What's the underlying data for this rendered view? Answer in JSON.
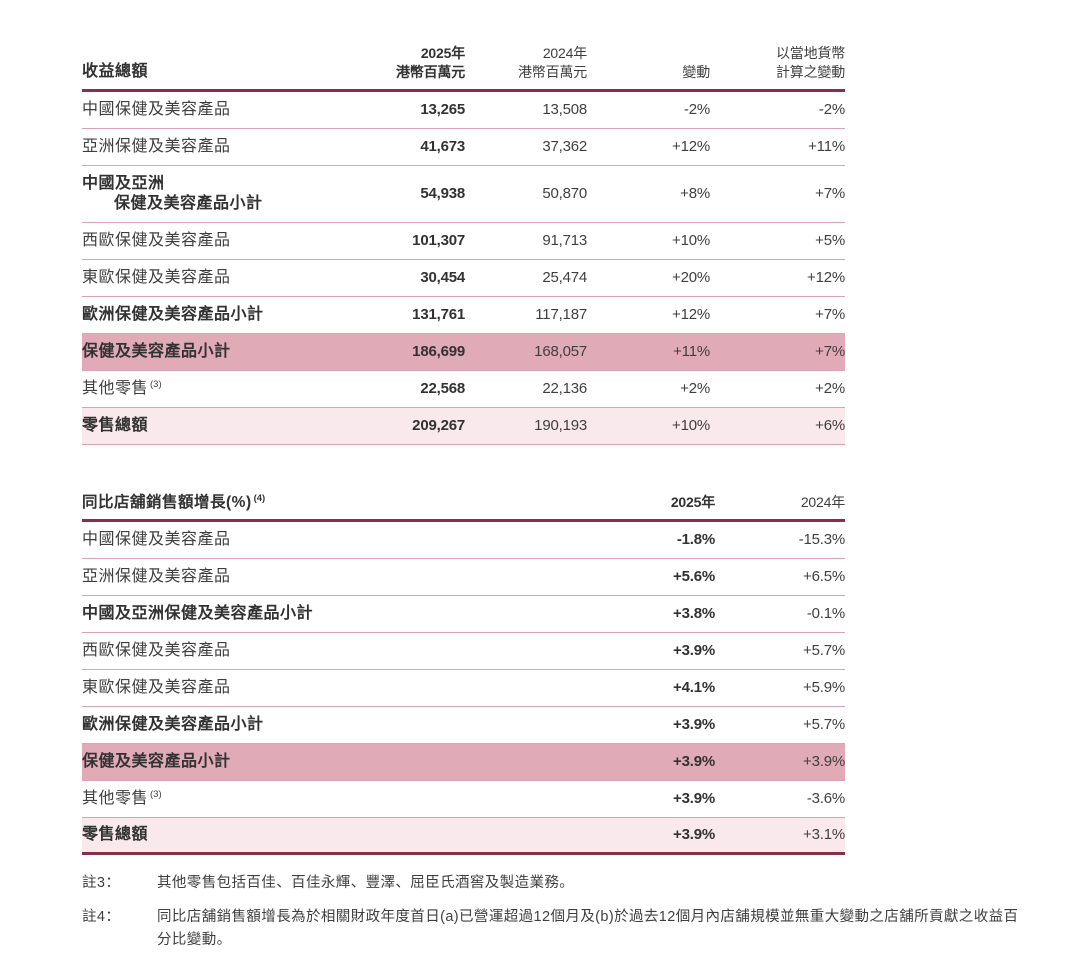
{
  "colors": {
    "header_rule": "#8a2d4a",
    "row_rule": "#d9a2b5",
    "subtotal_row_bg": "#e0aab7",
    "total_row_bg": "#f9e8ec",
    "text": "#3f3f3f"
  },
  "table1": {
    "header": {
      "label": "收益總額",
      "y2025_l1": "2025年",
      "y2025_l2": "港幣百萬元",
      "y2024_l1": "2024年",
      "y2024_l2": "港幣百萬元",
      "change": "變動",
      "local_l1": "以當地貨幣",
      "local_l2": "計算之變動"
    },
    "rows": [
      {
        "label": "中國保健及美容產品",
        "v2025": "13,265",
        "v2024": "13,508",
        "change": "-2%",
        "local": "-2%"
      },
      {
        "label": "亞洲保健及美容產品",
        "v2025": "41,673",
        "v2024": "37,362",
        "change": "+12%",
        "local": "+11%"
      },
      {
        "label": "中國及亞洲",
        "label2": "保健及美容產品小計",
        "v2025": "54,938",
        "v2024": "50,870",
        "change": "+8%",
        "local": "+7%"
      },
      {
        "label": "西歐保健及美容產品",
        "v2025": "101,307",
        "v2024": "91,713",
        "change": "+10%",
        "local": "+5%"
      },
      {
        "label": "東歐保健及美容產品",
        "v2025": "30,454",
        "v2024": "25,474",
        "change": "+20%",
        "local": "+12%"
      },
      {
        "label": "歐洲保健及美容產品小計",
        "v2025": "131,761",
        "v2024": "117,187",
        "change": "+12%",
        "local": "+7%"
      },
      {
        "label": "保健及美容產品小計",
        "v2025": "186,699",
        "v2024": "168,057",
        "change": "+11%",
        "local": "+7%"
      },
      {
        "label": "其他零售",
        "sup": "(3)",
        "v2025": "22,568",
        "v2024": "22,136",
        "change": "+2%",
        "local": "+2%"
      },
      {
        "label": "零售總額",
        "v2025": "209,267",
        "v2024": "190,193",
        "change": "+10%",
        "local": "+6%"
      }
    ]
  },
  "table2": {
    "header": {
      "label": "同比店舖銷售額增長(%)",
      "sup": "(4)",
      "y2025": "2025年",
      "y2024": "2024年"
    },
    "rows": [
      {
        "label": "中國保健及美容產品",
        "v2025": "-1.8%",
        "v2024": "-15.3%"
      },
      {
        "label": "亞洲保健及美容產品",
        "v2025": "+5.6%",
        "v2024": "+6.5%"
      },
      {
        "label": "中國及亞洲保健及美容產品小計",
        "v2025": "+3.8%",
        "v2024": "-0.1%"
      },
      {
        "label": "西歐保健及美容產品",
        "v2025": "+3.9%",
        "v2024": "+5.7%"
      },
      {
        "label": "東歐保健及美容產品",
        "v2025": "+4.1%",
        "v2024": "+5.9%"
      },
      {
        "label": "歐洲保健及美容產品小計",
        "v2025": "+3.9%",
        "v2024": "+5.7%"
      },
      {
        "label": "保健及美容產品小計",
        "v2025": "+3.9%",
        "v2024": "+3.9%"
      },
      {
        "label": "其他零售",
        "sup": "(3)",
        "v2025": "+3.9%",
        "v2024": "-3.6%"
      },
      {
        "label": "零售總額",
        "v2025": "+3.9%",
        "v2024": "+3.1%"
      }
    ]
  },
  "notes": [
    {
      "label": "註3：",
      "text": "其他零售包括百佳、百佳永輝、豐澤、屈臣氏酒窖及製造業務。"
    },
    {
      "label": "註4：",
      "text": "同比店舖銷售額增長為於相關財政年度首日(a)已營運超過12個月及(b)於過去12個月內店舖規模並無重大變動之店舖所貢獻之收益百分比變動。"
    }
  ]
}
